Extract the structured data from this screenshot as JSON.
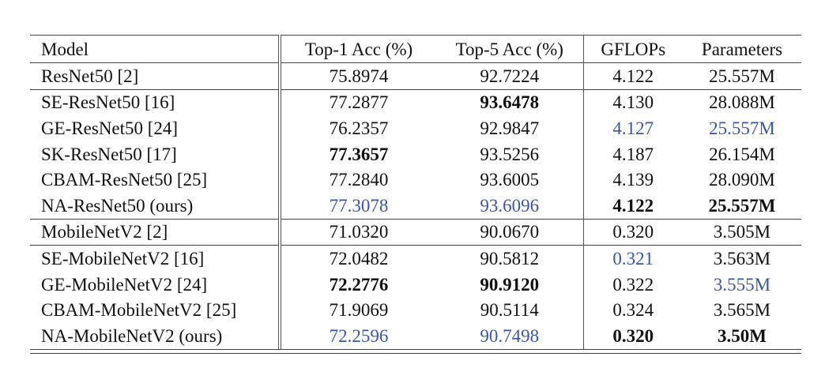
{
  "table": {
    "columns": [
      "Model",
      "Top-1 Acc (%)",
      "Top-5 Acc (%)",
      "GFLOPs",
      "Parameters"
    ],
    "groups": [
      {
        "rows": [
          {
            "model": "ResNet50 [2]",
            "top1": "75.8974",
            "top5": "92.7224",
            "gflops": "4.122",
            "params": "25.557M"
          },
          {
            "model": "SE-ResNet50 [16]",
            "top1": "77.2877",
            "top5": "93.6478",
            "gflops": "4.130",
            "params": "28.088M"
          },
          {
            "model": "GE-ResNet50 [24]",
            "top1": "76.2357",
            "top5": "92.9847",
            "gflops": "4.127",
            "params": "25.557M"
          },
          {
            "model": "SK-ResNet50 [17]",
            "top1": "77.3657",
            "top5": "93.5256",
            "gflops": "4.187",
            "params": "26.154M"
          },
          {
            "model": "CBAM-ResNet50 [25]",
            "top1": "77.2840",
            "top5": "93.6005",
            "gflops": "4.139",
            "params": "28.090M"
          },
          {
            "model": "NA-ResNet50 (ours)",
            "top1": "77.3078",
            "top5": "93.6096",
            "gflops": "4.122",
            "params": "25.557M"
          }
        ]
      },
      {
        "rows": [
          {
            "model": "MobileNetV2 [2]",
            "top1": "71.0320",
            "top5": "90.0670",
            "gflops": "0.320",
            "params": "3.505M"
          },
          {
            "model": "SE-MobileNetV2 [16]",
            "top1": "72.0482",
            "top5": "90.5812",
            "gflops": "0.321",
            "params": "3.563M"
          },
          {
            "model": "GE-MobileNetV2 [24]",
            "top1": "72.2776",
            "top5": "90.9120",
            "gflops": "0.322",
            "params": "3.555M"
          },
          {
            "model": "CBAM-MobileNetV2 [25]",
            "top1": "71.9069",
            "top5": "90.5114",
            "gflops": "0.324",
            "params": "3.565M"
          },
          {
            "model": "NA-MobileNetV2 (ours)",
            "top1": "72.2596",
            "top5": "90.7498",
            "gflops": "0.320",
            "params": "3.50M"
          }
        ]
      }
    ],
    "highlight_colors": {
      "best": "bold",
      "second": "#3a55a8"
    }
  }
}
